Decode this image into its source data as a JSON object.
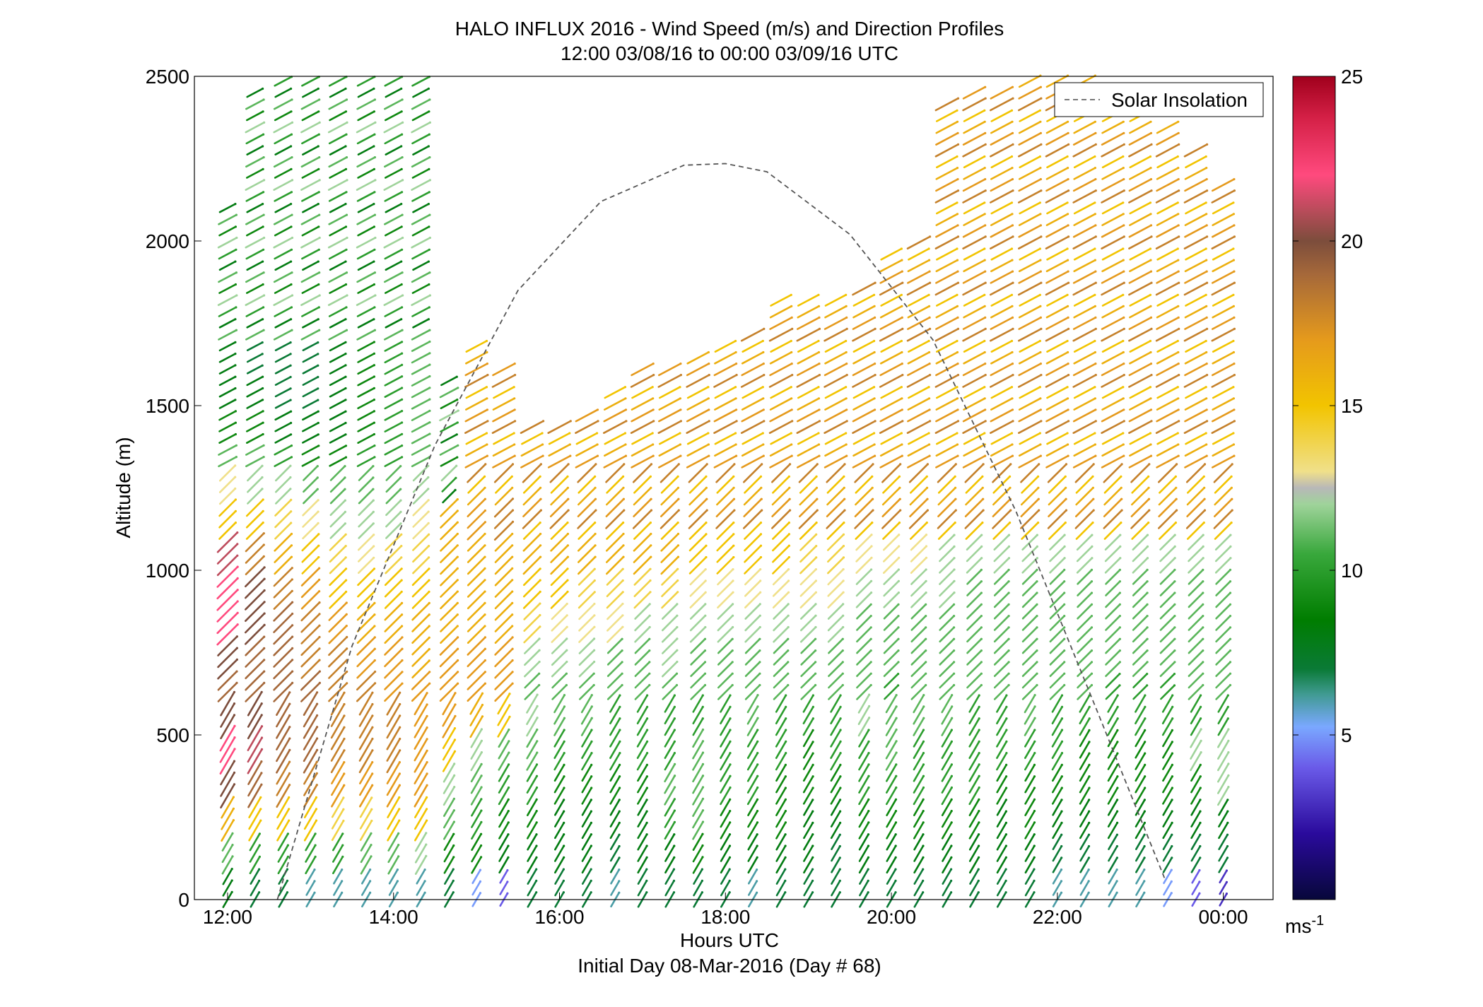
{
  "chart_data": {
    "type": "wind-barb",
    "title": "HALO INFLUX 2016 - Wind Speed (m/s) and Direction Profiles",
    "subtitle": "12:00 03/08/16 to 00:00 03/09/16  UTC",
    "xlabel": "Hours UTC",
    "xlabel2": "Initial Day 08-Mar-2016 (Day # 68)",
    "ylabel": "Altitude (m)",
    "xlim": [
      11.6,
      24.6
    ],
    "ylim": [
      0,
      2500
    ],
    "x_ticks": [
      12,
      14,
      16,
      18,
      20,
      22,
      24
    ],
    "x_tick_labels": [
      "12:00",
      "14:00",
      "16:00",
      "18:00",
      "20:00",
      "22:00",
      "00:00"
    ],
    "y_ticks": [
      0,
      500,
      1000,
      1500,
      2000,
      2500
    ],
    "y_tick_labels": [
      "0",
      "500",
      "1000",
      "1500",
      "2000",
      "2500"
    ],
    "colorbar": {
      "min": 0,
      "max": 25,
      "ticks": [
        5,
        10,
        15,
        20,
        25
      ],
      "tick_labels": [
        "5",
        "10",
        "15",
        "20",
        "25"
      ],
      "unit_label": "ms",
      "unit_exponent": "-1"
    },
    "legend": {
      "position": "top-right",
      "entries": [
        "Solar Insolation"
      ]
    },
    "solar_insolation": {
      "x": [
        12.6,
        13.5,
        14.5,
        15.5,
        16.5,
        17.5,
        18.0,
        18.5,
        19.5,
        20.5,
        21.5,
        22.5,
        23.3
      ],
      "y": [
        0,
        770,
        1380,
        1850,
        2120,
        2230,
        2235,
        2210,
        2020,
        1700,
        1180,
        560,
        60
      ]
    },
    "profiles": [
      {
        "time": 12.0,
        "top": 2100,
        "speeds_low": [
          8,
          11,
          16,
          20,
          22,
          20,
          19,
          20,
          22,
          22,
          21,
          15,
          13,
          11,
          9,
          8,
          8
        ]
      },
      {
        "time": 12.33,
        "top": 2470,
        "speeds_low": [
          7,
          10,
          15,
          19,
          21,
          20,
          19,
          19,
          20,
          20,
          18,
          15,
          12,
          11,
          9,
          8,
          7
        ]
      },
      {
        "time": 12.67,
        "top": 2500,
        "speeds_low": [
          7,
          10,
          15,
          18,
          19,
          19,
          19,
          19,
          19,
          18,
          16,
          14,
          12,
          10,
          8,
          7,
          7
        ]
      },
      {
        "time": 13.0,
        "top": 2500,
        "speeds_low": [
          6,
          10,
          15,
          18,
          19,
          19,
          19,
          18,
          18,
          17,
          15,
          13,
          11,
          9,
          8,
          7,
          7
        ]
      },
      {
        "time": 13.33,
        "top": 2500,
        "speeds_low": [
          6,
          10,
          14,
          17,
          18,
          18,
          18,
          18,
          17,
          15,
          14,
          12,
          11,
          9,
          8,
          8,
          8
        ]
      },
      {
        "time": 13.67,
        "top": 2500,
        "speeds_low": [
          6,
          11,
          14,
          17,
          18,
          18,
          18,
          17,
          16,
          15,
          13,
          12,
          11,
          10,
          9,
          9,
          9
        ]
      },
      {
        "time": 14.0,
        "top": 2500,
        "speeds_low": [
          6,
          11,
          15,
          17,
          18,
          18,
          17,
          17,
          16,
          15,
          14,
          12,
          11,
          10,
          10,
          10,
          10
        ]
      },
      {
        "time": 14.33,
        "top": 2500,
        "speeds_low": [
          6,
          12,
          15,
          17,
          17,
          17,
          17,
          16,
          16,
          15,
          14,
          13,
          12,
          11,
          11,
          11,
          11
        ]
      },
      {
        "time": 14.67,
        "top": 1580,
        "speeds_low": [
          7,
          9,
          11,
          12,
          15,
          17,
          17,
          17,
          16,
          16,
          16,
          16
        ]
      },
      {
        "time": 15.0,
        "top": 1690,
        "speeds_low": [
          5,
          9,
          10,
          11,
          12,
          16,
          17,
          17,
          16,
          16,
          16,
          17
        ]
      },
      {
        "time": 15.33,
        "top": 1620,
        "speeds_low": [
          4,
          8,
          9,
          10,
          11,
          15,
          17,
          17,
          16,
          16,
          16,
          18
        ]
      },
      {
        "time": 15.67,
        "top": 1450,
        "speeds_low": [
          7,
          8,
          9,
          10,
          11,
          12,
          11,
          12,
          14,
          15,
          16
        ]
      },
      {
        "time": 16.0,
        "top": 1460,
        "speeds_low": [
          7,
          8,
          8,
          9,
          10,
          11,
          11,
          12,
          13,
          15,
          16
        ]
      },
      {
        "time": 16.33,
        "top": 1500,
        "speeds_low": [
          7,
          8,
          8,
          9,
          10,
          11,
          11,
          12,
          13,
          14,
          16
        ]
      },
      {
        "time": 16.67,
        "top": 1560,
        "speeds_low": [
          6,
          7,
          8,
          9,
          10,
          10,
          11,
          11,
          13,
          14,
          16
        ]
      },
      {
        "time": 17.0,
        "top": 1620,
        "speeds_low": [
          7,
          8,
          8,
          9,
          10,
          10,
          11,
          11,
          12,
          14,
          16
        ]
      },
      {
        "time": 17.33,
        "top": 1640,
        "speeds_low": [
          7,
          8,
          10,
          11,
          10,
          10,
          11,
          12,
          12,
          14,
          16
        ]
      },
      {
        "time": 17.67,
        "top": 1660,
        "speeds_low": [
          7,
          9,
          11,
          11,
          11,
          10,
          11,
          11,
          12,
          13,
          15
        ]
      },
      {
        "time": 18.0,
        "top": 1700,
        "speeds_low": [
          7,
          8,
          9,
          10,
          10,
          10,
          11,
          11,
          12,
          13,
          15
        ]
      },
      {
        "time": 18.33,
        "top": 1720,
        "speeds_low": [
          6,
          8,
          9,
          10,
          10,
          11,
          11,
          11,
          12,
          13,
          15
        ]
      },
      {
        "time": 18.67,
        "top": 1850,
        "speeds_low": [
          7,
          8,
          9,
          9,
          10,
          10,
          11,
          11,
          12,
          13,
          15
        ]
      },
      {
        "time": 19.0,
        "top": 1820,
        "speeds_low": [
          7,
          8,
          8,
          9,
          9,
          10,
          11,
          11,
          12,
          13,
          14
        ]
      },
      {
        "time": 19.33,
        "top": 1830,
        "speeds_low": [
          7,
          7,
          8,
          9,
          10,
          10,
          11,
          11,
          12,
          13,
          14
        ]
      },
      {
        "time": 19.67,
        "top": 1870,
        "speeds_low": [
          7,
          8,
          9,
          10,
          10,
          12,
          11,
          11,
          11,
          12,
          13
        ]
      },
      {
        "time": 20.0,
        "top": 1960,
        "speeds_low": [
          7,
          8,
          9,
          10,
          11,
          11,
          10,
          11,
          11,
          12,
          13
        ]
      },
      {
        "time": 20.33,
        "top": 2000,
        "speeds_low": [
          7,
          8,
          9,
          10,
          10,
          11,
          11,
          11,
          11,
          12,
          13
        ]
      },
      {
        "time": 20.67,
        "top": 2440,
        "speeds_low": [
          7,
          8,
          9,
          10,
          10,
          11,
          11,
          11,
          11,
          12,
          12
        ]
      },
      {
        "time": 21.0,
        "top": 2460,
        "speeds_low": [
          7,
          8,
          9,
          10,
          10,
          10,
          11,
          11,
          11,
          11,
          12
        ]
      },
      {
        "time": 21.33,
        "top": 2480,
        "speeds_low": [
          7,
          8,
          8,
          9,
          10,
          10,
          11,
          11,
          11,
          11,
          12
        ]
      },
      {
        "time": 21.67,
        "top": 2500,
        "speeds_low": [
          7,
          8,
          9,
          9,
          10,
          11,
          11,
          11,
          11,
          11,
          12
        ]
      },
      {
        "time": 22.0,
        "top": 2500,
        "speeds_low": [
          6,
          7,
          8,
          9,
          10,
          10,
          11,
          11,
          11,
          11,
          12
        ]
      },
      {
        "time": 22.33,
        "top": 2500,
        "speeds_low": [
          6,
          7,
          8,
          9,
          9,
          10,
          11,
          11,
          11,
          11,
          12
        ]
      },
      {
        "time": 22.67,
        "top": 2420,
        "speeds_low": [
          6,
          7,
          8,
          9,
          9,
          10,
          10,
          11,
          11,
          11,
          12
        ]
      },
      {
        "time": 23.0,
        "top": 2400,
        "speeds_low": [
          6,
          7,
          8,
          9,
          9,
          10,
          10,
          11,
          11,
          11,
          12
        ]
      },
      {
        "time": 23.33,
        "top": 2360,
        "speeds_low": [
          5,
          7,
          8,
          9,
          9,
          10,
          10,
          11,
          11,
          11,
          12
        ]
      },
      {
        "time": 23.67,
        "top": 2300,
        "speeds_low": [
          4,
          7,
          8,
          9,
          12,
          10,
          11,
          11,
          11,
          11,
          12
        ]
      },
      {
        "time": 24.0,
        "top": 2180,
        "speeds_low": [
          3,
          7,
          8,
          12,
          12,
          10,
          11,
          11,
          11,
          11,
          12
        ]
      }
    ]
  }
}
